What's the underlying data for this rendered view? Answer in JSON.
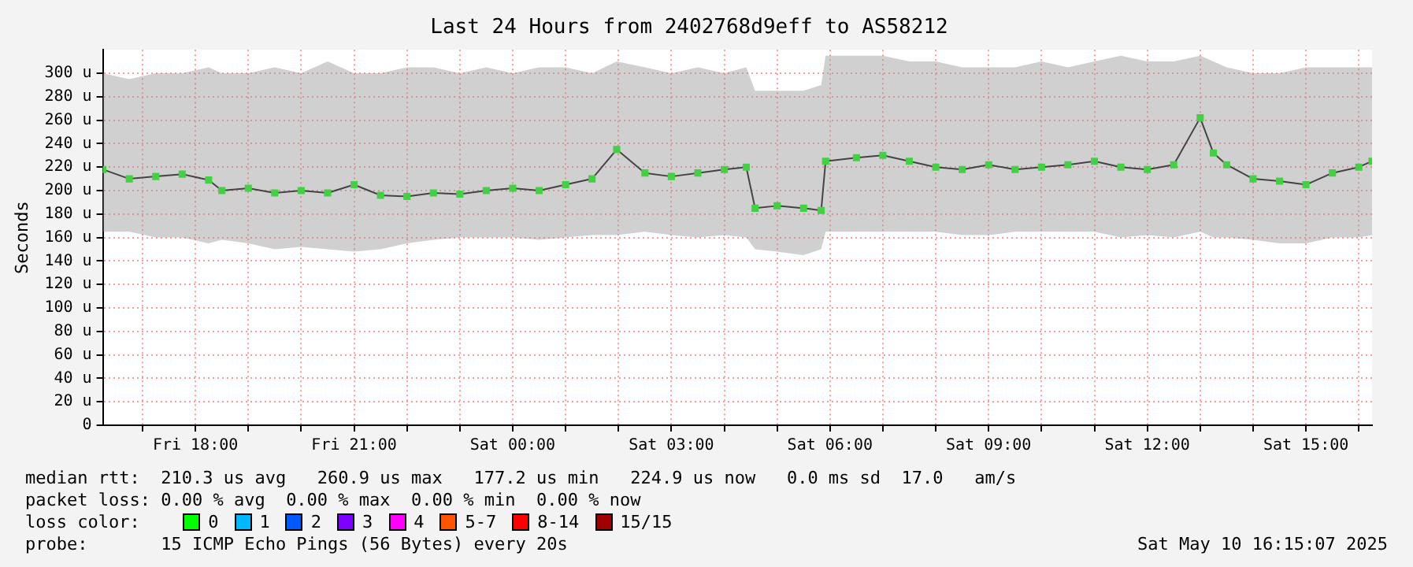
{
  "chart_data": {
    "type": "line",
    "title": "Last 24 Hours from 2402768d9eff to AS58212",
    "ylabel": "Seconds",
    "x": [
      "2025-05-09T16:15",
      "2025-05-09T16:45",
      "2025-05-09T17:15",
      "2025-05-09T17:45",
      "2025-05-09T18:15",
      "2025-05-09T18:30",
      "2025-05-09T19:00",
      "2025-05-09T19:30",
      "2025-05-09T20:00",
      "2025-05-09T20:30",
      "2025-05-09T21:00",
      "2025-05-09T21:30",
      "2025-05-09T22:00",
      "2025-05-09T22:30",
      "2025-05-09T23:00",
      "2025-05-09T23:30",
      "2025-05-10T00:00",
      "2025-05-10T00:30",
      "2025-05-10T01:00",
      "2025-05-10T01:30",
      "2025-05-10T01:58",
      "2025-05-10T02:30",
      "2025-05-10T03:00",
      "2025-05-10T03:30",
      "2025-05-10T04:00",
      "2025-05-10T04:25",
      "2025-05-10T04:35",
      "2025-05-10T05:00",
      "2025-05-10T05:30",
      "2025-05-10T05:50",
      "2025-05-10T05:55",
      "2025-05-10T06:30",
      "2025-05-10T07:00",
      "2025-05-10T07:30",
      "2025-05-10T08:00",
      "2025-05-10T08:30",
      "2025-05-10T09:00",
      "2025-05-10T09:30",
      "2025-05-10T10:00",
      "2025-05-10T10:30",
      "2025-05-10T11:00",
      "2025-05-10T11:30",
      "2025-05-10T12:00",
      "2025-05-10T12:30",
      "2025-05-10T13:00",
      "2025-05-10T13:15",
      "2025-05-10T13:30",
      "2025-05-10T14:00",
      "2025-05-10T14:30",
      "2025-05-10T15:00",
      "2025-05-10T15:30",
      "2025-05-10T16:00",
      "2025-05-10T16:15"
    ],
    "series": [
      {
        "color": "#00ff00",
        "values": [
          218,
          210,
          212,
          214,
          209,
          200,
          202,
          198,
          200,
          198,
          205,
          196,
          195,
          198,
          197,
          200,
          202,
          200,
          205,
          210,
          235,
          215,
          212,
          215,
          218,
          220,
          185,
          187,
          185,
          183,
          225,
          228,
          230,
          225,
          220,
          218,
          222,
          218,
          220,
          222,
          225,
          220,
          218,
          222,
          262,
          232,
          222,
          210,
          208,
          205,
          215,
          220,
          225
        ],
        "lower": [
          165,
          165,
          160,
          160,
          155,
          158,
          155,
          150,
          152,
          150,
          148,
          150,
          155,
          158,
          160,
          160,
          160,
          158,
          160,
          162,
          162,
          165,
          162,
          160,
          162,
          160,
          150,
          148,
          145,
          150,
          165,
          165,
          165,
          165,
          165,
          162,
          162,
          165,
          165,
          165,
          165,
          160,
          162,
          160,
          165,
          160,
          160,
          158,
          155,
          155,
          160,
          160,
          162
        ],
        "upper": [
          300,
          295,
          300,
          300,
          305,
          300,
          300,
          305,
          300,
          310,
          300,
          300,
          305,
          305,
          300,
          305,
          300,
          305,
          305,
          300,
          310,
          305,
          300,
          305,
          300,
          305,
          285,
          285,
          285,
          290,
          315,
          315,
          315,
          310,
          310,
          305,
          305,
          305,
          310,
          305,
          310,
          315,
          310,
          310,
          315,
          310,
          305,
          300,
          300,
          305,
          305,
          305,
          305
        ]
      }
    ],
    "ylim": [
      0,
      320
    ],
    "yticks": [
      0,
      {
        "value": 20,
        "label": "20 u"
      },
      {
        "value": 40,
        "label": "40 u"
      },
      {
        "value": 60,
        "label": "60 u"
      },
      {
        "value": 80,
        "label": "80 u"
      },
      {
        "value": 100,
        "label": "100 u"
      },
      {
        "value": 120,
        "label": "120 u"
      },
      {
        "value": 140,
        "label": "140 u"
      },
      {
        "value": 160,
        "label": "160 u"
      },
      {
        "value": 180,
        "label": "180 u"
      },
      {
        "value": 200,
        "label": "200 u"
      },
      {
        "value": 220,
        "label": "220 u"
      },
      {
        "value": 240,
        "label": "240 u"
      },
      {
        "value": 260,
        "label": "260 u"
      },
      {
        "value": 280,
        "label": "280 u"
      },
      {
        "value": 300,
        "label": "300 u"
      }
    ],
    "xlim": [
      "2025-05-09T16:15",
      "2025-05-10T16:15"
    ],
    "xticks": [
      {
        "value": "2025-05-09T17:00",
        "label": null
      },
      {
        "value": "2025-05-09T18:00",
        "label": "Fri 18:00"
      },
      {
        "value": "2025-05-09T19:00",
        "label": null
      },
      {
        "value": "2025-05-09T20:00",
        "label": null
      },
      {
        "value": "2025-05-09T21:00",
        "label": "Fri 21:00"
      },
      {
        "value": "2025-05-09T22:00",
        "label": null
      },
      {
        "value": "2025-05-09T23:00",
        "label": null
      },
      {
        "value": "2025-05-10T00:00",
        "label": "Sat 00:00"
      },
      {
        "value": "2025-05-10T01:00",
        "label": null
      },
      {
        "value": "2025-05-10T02:00",
        "label": null
      },
      {
        "value": "2025-05-10T03:00",
        "label": "Sat 03:00"
      },
      {
        "value": "2025-05-10T04:00",
        "label": null
      },
      {
        "value": "2025-05-10T05:00",
        "label": null
      },
      {
        "value": "2025-05-10T06:00",
        "label": "Sat 06:00"
      },
      {
        "value": "2025-05-10T07:00",
        "label": null
      },
      {
        "value": "2025-05-10T08:00",
        "label": null
      },
      {
        "value": "2025-05-10T09:00",
        "label": "Sat 09:00"
      },
      {
        "value": "2025-05-10T10:00",
        "label": null
      },
      {
        "value": "2025-05-10T11:00",
        "label": null
      },
      {
        "value": "2025-05-10T12:00",
        "label": "Sat 12:00"
      },
      {
        "value": "2025-05-10T13:00",
        "label": null
      },
      {
        "value": "2025-05-10T14:00",
        "label": null
      },
      {
        "value": "2025-05-10T15:00",
        "label": "Sat 15:00"
      },
      {
        "value": "2025-05-10T16:00",
        "label": null
      }
    ],
    "grid": true,
    "marker": "square",
    "line_style": "solid",
    "annotations": [
      "median rtt:  210.3 us avg   260.9 us max   177.2 us min   224.9 us now   0.0 ms sd  17.0   am/s",
      "packet loss: 0.00 % avg  0.00 % max  0.00 % min  0.00 % now",
      "loss color:",
      "0",
      "1",
      "2",
      "3",
      "4",
      "5-7",
      "8-14",
      "15/15",
      "probe:       15 ICMP Echo Pings (56 Bytes) every 20s",
      "Sat May 10 16:15:07 2025"
    ]
  }
}
